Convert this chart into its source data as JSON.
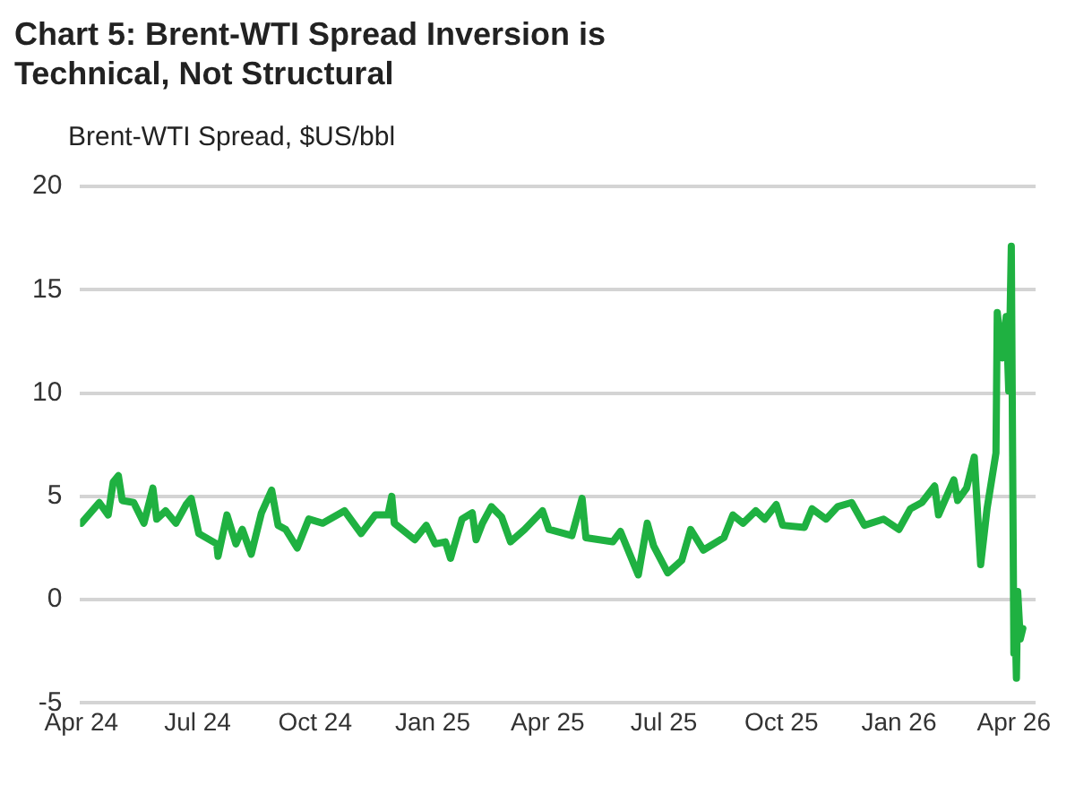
{
  "chart_data": {
    "type": "line",
    "title": "Chart 5: Brent-WTI Spread Inversion is Technical, Not Structural",
    "ylabel": "Brent-WTI Spread, $US/bbl",
    "x": [
      "2024-04-01",
      "2024-04-08",
      "2024-04-15",
      "2024-04-22",
      "2024-04-26",
      "2024-04-30",
      "2024-05-03",
      "2024-05-12",
      "2024-05-20",
      "2024-05-27",
      "2024-05-30",
      "2024-06-06",
      "2024-06-14",
      "2024-06-22",
      "2024-06-26",
      "2024-07-02",
      "2024-07-16",
      "2024-07-17",
      "2024-07-24",
      "2024-07-31",
      "2024-08-05",
      "2024-08-12",
      "2024-08-20",
      "2024-08-28",
      "2024-09-02",
      "2024-09-08",
      "2024-09-17",
      "2024-09-26",
      "2024-10-07",
      "2024-10-24",
      "2024-11-06",
      "2024-11-17",
      "2024-11-27",
      "2024-11-30",
      "2024-12-02",
      "2024-12-18",
      "2024-12-27",
      "2025-01-03",
      "2025-01-11",
      "2025-01-15",
      "2025-01-24",
      "2025-02-01",
      "2025-02-04",
      "2025-02-09",
      "2025-02-16",
      "2025-02-24",
      "2025-03-03",
      "2025-03-14",
      "2025-03-28",
      "2025-04-02",
      "2025-04-20",
      "2025-04-28",
      "2025-05-01",
      "2025-05-22",
      "2025-05-28",
      "2025-06-11",
      "2025-06-18",
      "2025-06-23",
      "2025-07-04",
      "2025-07-15",
      "2025-07-22",
      "2025-08-01",
      "2025-08-17",
      "2025-08-24",
      "2025-09-01",
      "2025-09-11",
      "2025-09-18",
      "2025-09-27",
      "2025-10-02",
      "2025-10-19",
      "2025-10-25",
      "2025-11-05",
      "2025-11-14",
      "2025-11-25",
      "2025-12-05",
      "2025-12-20",
      "2026-01-01",
      "2026-01-10",
      "2026-01-19",
      "2026-01-29",
      "2026-02-01",
      "2026-02-13",
      "2026-02-16",
      "2026-02-23",
      "2026-03-01",
      "2026-03-06",
      "2026-03-11",
      "2026-03-18",
      "2026-03-19",
      "2026-03-23",
      "2026-03-26",
      "2026-03-28",
      "2026-03-30",
      "2026-04-01",
      "2026-04-02",
      "2026-04-03",
      "2026-04-04",
      "2026-04-06",
      "2026-04-08"
    ],
    "series": [
      {
        "color": "#1fb141",
        "values": [
          3.7,
          4.2,
          4.7,
          4.1,
          5.7,
          6.0,
          4.8,
          4.7,
          3.7,
          5.4,
          3.9,
          4.3,
          3.7,
          4.6,
          4.9,
          3.2,
          2.7,
          2.1,
          4.1,
          2.7,
          3.4,
          2.2,
          4.2,
          5.3,
          3.6,
          3.4,
          2.5,
          3.9,
          3.7,
          4.3,
          3.2,
          4.1,
          4.1,
          5.0,
          3.7,
          2.9,
          3.6,
          2.7,
          2.8,
          2.0,
          3.9,
          4.2,
          2.9,
          3.7,
          4.5,
          4.0,
          2.8,
          3.4,
          4.3,
          3.4,
          3.1,
          4.9,
          3.0,
          2.8,
          3.3,
          1.2,
          3.7,
          2.6,
          1.3,
          1.9,
          3.4,
          2.4,
          3.0,
          4.1,
          3.7,
          4.3,
          3.9,
          4.6,
          3.6,
          3.5,
          4.4,
          3.9,
          4.5,
          4.7,
          3.6,
          3.9,
          3.4,
          4.4,
          4.7,
          5.5,
          4.1,
          5.8,
          4.8,
          5.4,
          6.9,
          1.7,
          4.4,
          7.1,
          13.9,
          11.7,
          13.7,
          10.1,
          17.1,
          -2.6,
          -1.0,
          -3.8,
          0.4,
          -1.9,
          -1.4
        ]
      }
    ],
    "xlim": [
      "2024-03-31",
      "2026-04-18"
    ],
    "xticks": [
      {
        "value": "2024-04-01",
        "label": "Apr 24"
      },
      {
        "value": "2024-07-01",
        "label": "Jul 24"
      },
      {
        "value": "2024-10-01",
        "label": "Oct 24"
      },
      {
        "value": "2025-01-01",
        "label": "Jan 25"
      },
      {
        "value": "2025-04-01",
        "label": "Apr 25"
      },
      {
        "value": "2025-07-01",
        "label": "Jul 25"
      },
      {
        "value": "2025-10-01",
        "label": "Oct 25"
      },
      {
        "value": "2026-01-01",
        "label": "Jan 26"
      },
      {
        "value": "2026-04-01",
        "label": "Apr 26"
      }
    ],
    "ylim": [
      -5,
      20
    ],
    "yticks": [
      -5,
      0,
      5,
      10,
      15,
      20
    ],
    "grid": "y",
    "line_style": "solid",
    "marker": "none"
  }
}
